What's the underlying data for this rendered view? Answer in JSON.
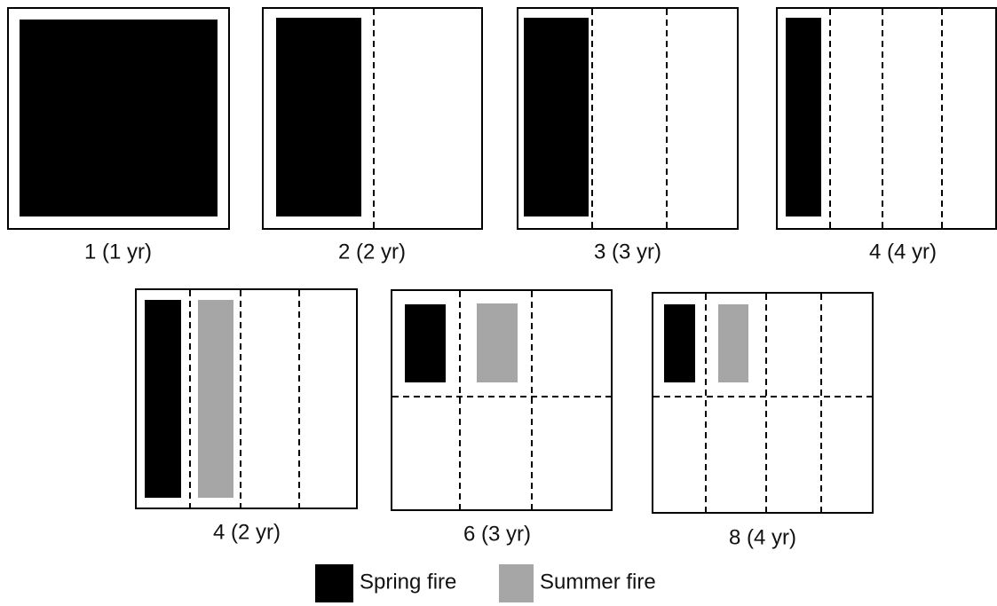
{
  "panels": [
    {
      "label": "1 (1 yr)"
    },
    {
      "label": "2 (2 yr)"
    },
    {
      "label": "3 (3 yr)"
    },
    {
      "label": "4 (4 yr)"
    },
    {
      "label": "4 (2 yr)"
    },
    {
      "label": "6 (3 yr)"
    },
    {
      "label": "8 (4 yr)"
    }
  ],
  "legend": {
    "items": [
      {
        "label": "Spring fire"
      },
      {
        "label": "Summer fire"
      }
    ]
  }
}
